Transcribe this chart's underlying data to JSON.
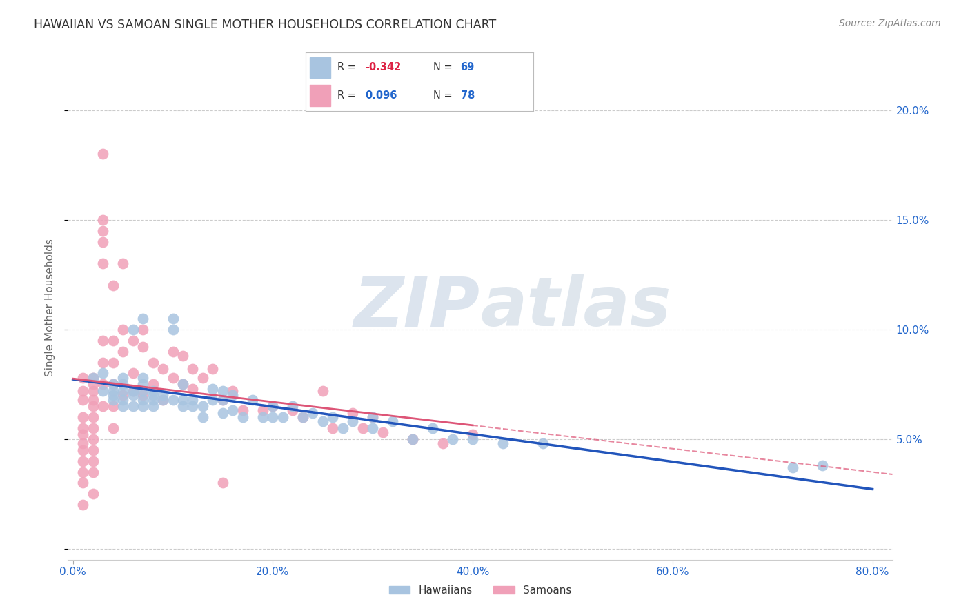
{
  "title": "HAWAIIAN VS SAMOAN SINGLE MOTHER HOUSEHOLDS CORRELATION CHART",
  "source": "Source: ZipAtlas.com",
  "ylabel": "Single Mother Households",
  "x_tick_labels": [
    "0.0%",
    "20.0%",
    "40.0%",
    "60.0%",
    "80.0%"
  ],
  "x_tick_values": [
    0.0,
    0.2,
    0.4,
    0.6,
    0.8
  ],
  "y_tick_labels": [
    "5.0%",
    "10.0%",
    "15.0%",
    "20.0%"
  ],
  "y_tick_values": [
    0.05,
    0.1,
    0.15,
    0.2
  ],
  "xlim": [
    -0.005,
    0.82
  ],
  "ylim": [
    -0.005,
    0.225
  ],
  "hawaiian_color": "#a8c4e0",
  "samoan_color": "#f0a0b8",
  "hawaiian_line_color": "#2255bb",
  "samoan_line_color": "#dd5577",
  "watermark": "ZIPAtlas",
  "watermark_color": "#c8d8e8",
  "background_color": "#ffffff",
  "grid_color": "#cccccc",
  "legend_r1_color": "#a8c4e0",
  "legend_r2_color": "#f0a0b8",
  "legend_text_dark": "#222222",
  "legend_val1_color": "#dd2244",
  "legend_val2_color": "#2266cc",
  "legend_n_color": "#2266cc",
  "hawaiian_x": [
    0.02,
    0.03,
    0.03,
    0.04,
    0.04,
    0.04,
    0.04,
    0.05,
    0.05,
    0.05,
    0.05,
    0.05,
    0.06,
    0.06,
    0.06,
    0.06,
    0.07,
    0.07,
    0.07,
    0.07,
    0.07,
    0.07,
    0.08,
    0.08,
    0.08,
    0.08,
    0.09,
    0.09,
    0.1,
    0.1,
    0.1,
    0.11,
    0.11,
    0.11,
    0.12,
    0.12,
    0.13,
    0.13,
    0.14,
    0.14,
    0.15,
    0.15,
    0.15,
    0.16,
    0.16,
    0.17,
    0.18,
    0.19,
    0.2,
    0.2,
    0.21,
    0.22,
    0.23,
    0.24,
    0.25,
    0.26,
    0.27,
    0.28,
    0.3,
    0.3,
    0.32,
    0.34,
    0.36,
    0.38,
    0.4,
    0.43,
    0.47,
    0.72,
    0.75
  ],
  "hawaiian_y": [
    0.078,
    0.072,
    0.08,
    0.068,
    0.072,
    0.075,
    0.07,
    0.065,
    0.072,
    0.078,
    0.075,
    0.068,
    0.1,
    0.07,
    0.072,
    0.065,
    0.105,
    0.068,
    0.072,
    0.078,
    0.065,
    0.075,
    0.068,
    0.072,
    0.065,
    0.07,
    0.068,
    0.07,
    0.1,
    0.105,
    0.068,
    0.068,
    0.075,
    0.065,
    0.068,
    0.065,
    0.065,
    0.06,
    0.068,
    0.073,
    0.062,
    0.068,
    0.072,
    0.063,
    0.07,
    0.06,
    0.068,
    0.06,
    0.06,
    0.065,
    0.06,
    0.065,
    0.06,
    0.062,
    0.058,
    0.06,
    0.055,
    0.058,
    0.06,
    0.055,
    0.058,
    0.05,
    0.055,
    0.05,
    0.05,
    0.048,
    0.048,
    0.037,
    0.038
  ],
  "samoan_x": [
    0.01,
    0.01,
    0.01,
    0.01,
    0.01,
    0.01,
    0.01,
    0.01,
    0.01,
    0.01,
    0.01,
    0.01,
    0.02,
    0.02,
    0.02,
    0.02,
    0.02,
    0.02,
    0.02,
    0.02,
    0.02,
    0.02,
    0.02,
    0.02,
    0.03,
    0.03,
    0.03,
    0.03,
    0.03,
    0.03,
    0.03,
    0.03,
    0.03,
    0.04,
    0.04,
    0.04,
    0.04,
    0.04,
    0.04,
    0.05,
    0.05,
    0.05,
    0.05,
    0.06,
    0.06,
    0.06,
    0.07,
    0.07,
    0.07,
    0.08,
    0.08,
    0.09,
    0.09,
    0.1,
    0.1,
    0.11,
    0.11,
    0.12,
    0.12,
    0.13,
    0.14,
    0.15,
    0.15,
    0.16,
    0.17,
    0.19,
    0.2,
    0.22,
    0.23,
    0.25,
    0.26,
    0.28,
    0.29,
    0.3,
    0.31,
    0.34,
    0.37,
    0.4
  ],
  "samoan_y": [
    0.078,
    0.072,
    0.068,
    0.06,
    0.055,
    0.052,
    0.048,
    0.045,
    0.04,
    0.035,
    0.03,
    0.02,
    0.078,
    0.075,
    0.072,
    0.068,
    0.065,
    0.06,
    0.055,
    0.05,
    0.045,
    0.04,
    0.035,
    0.025,
    0.18,
    0.15,
    0.145,
    0.14,
    0.13,
    0.095,
    0.085,
    0.075,
    0.065,
    0.12,
    0.095,
    0.085,
    0.075,
    0.065,
    0.055,
    0.13,
    0.1,
    0.09,
    0.07,
    0.095,
    0.08,
    0.072,
    0.1,
    0.092,
    0.07,
    0.085,
    0.075,
    0.082,
    0.068,
    0.09,
    0.078,
    0.088,
    0.075,
    0.082,
    0.073,
    0.078,
    0.082,
    0.068,
    0.03,
    0.072,
    0.063,
    0.063,
    0.065,
    0.063,
    0.06,
    0.072,
    0.055,
    0.062,
    0.055,
    0.06,
    0.053,
    0.05,
    0.048,
    0.052
  ]
}
